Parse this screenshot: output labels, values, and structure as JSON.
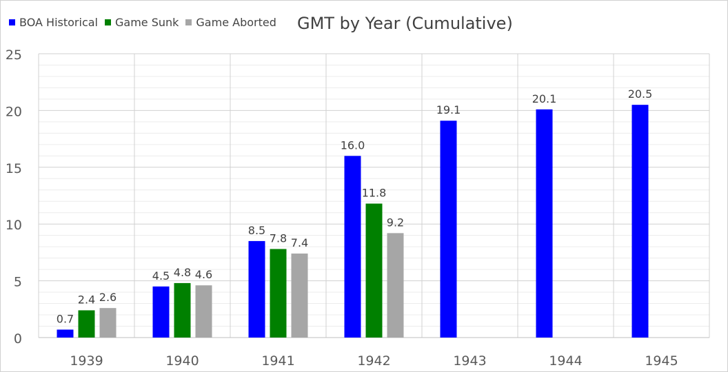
{
  "chart_data": {
    "type": "bar",
    "title": "GMT by Year (Cumulative)",
    "xlabel": "",
    "ylabel": "",
    "categories": [
      "1939",
      "1940",
      "1941",
      "1942",
      "1943",
      "1944",
      "1945"
    ],
    "ylim": [
      0,
      25
    ],
    "yticks": [
      "0",
      "5",
      "10",
      "15",
      "20",
      "25"
    ],
    "grid": true,
    "legend_position": "top-left",
    "series": [
      {
        "name": "BOA Historical",
        "color": "#0000ff",
        "values": [
          0.7,
          4.5,
          8.5,
          16.0,
          19.1,
          20.1,
          20.5
        ],
        "labels": [
          "0.7",
          "4.5",
          "8.5",
          "16.0",
          "19.1",
          "20.1",
          "20.5"
        ]
      },
      {
        "name": "Game Sunk",
        "color": "#008000",
        "values": [
          2.4,
          4.8,
          7.8,
          11.8,
          null,
          null,
          null
        ],
        "labels": [
          "2.4",
          "4.8",
          "7.8",
          "11.8",
          "",
          "",
          ""
        ]
      },
      {
        "name": "Game Aborted",
        "color": "#a6a6a6",
        "values": [
          2.6,
          4.6,
          7.4,
          9.2,
          null,
          null,
          null
        ],
        "labels": [
          "2.6",
          "4.6",
          "7.4",
          "9.2",
          "",
          "",
          ""
        ]
      }
    ]
  }
}
